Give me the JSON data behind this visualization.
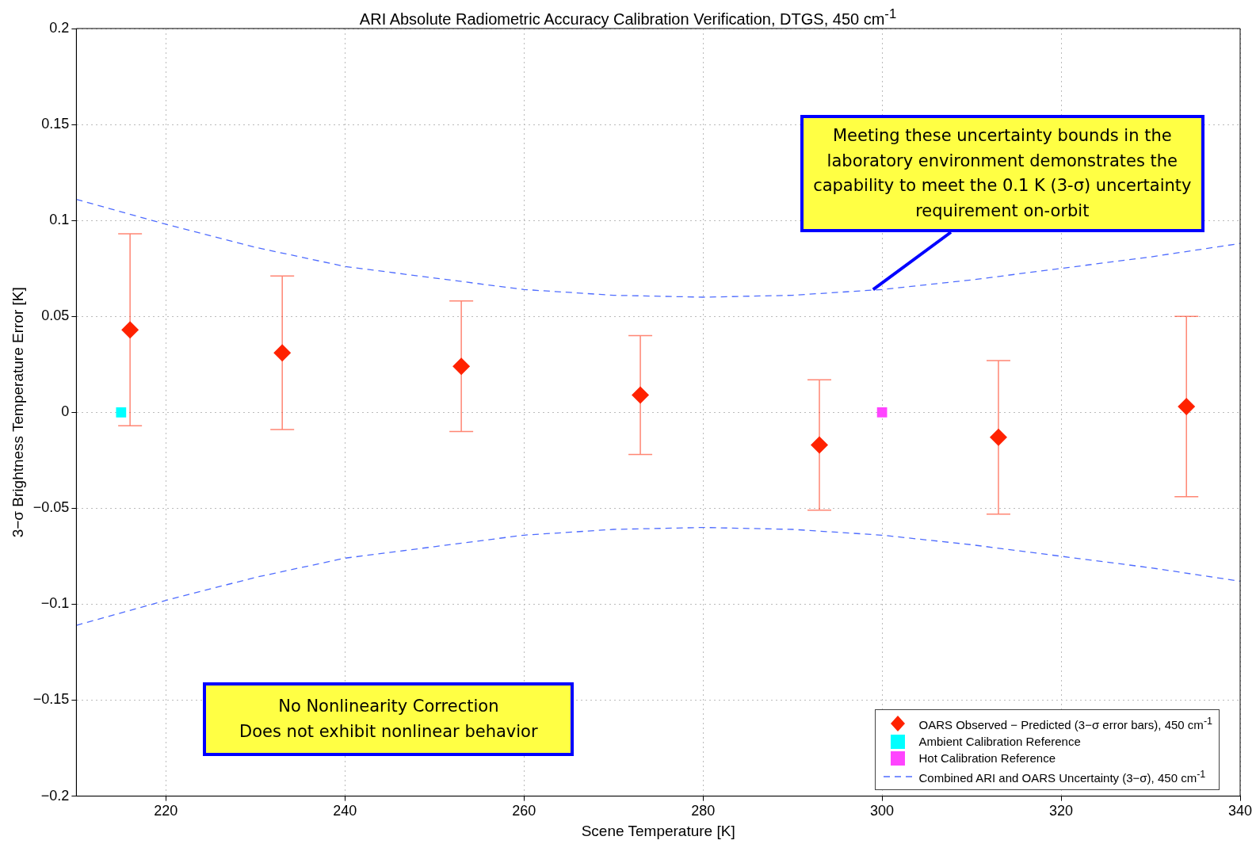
{
  "chart_data": {
    "type": "scatter",
    "title": "ARI Absolute Radiometric Accuracy Calibration Verification, DTGS, 450 cm$^{-1}$",
    "xlabel": "Scene Temperature [K]",
    "ylabel": "3−σ Brightness Temperature Error [K]",
    "xlim": [
      210,
      340
    ],
    "xticks": [
      220,
      240,
      260,
      280,
      300,
      320,
      340
    ],
    "ylim": [
      -0.2,
      0.2
    ],
    "yticks": [
      {
        "value": -0.2,
        "label": "−0.2"
      },
      {
        "value": -0.15,
        "label": "−0.15"
      },
      {
        "value": -0.1,
        "label": "−0.1"
      },
      {
        "value": -0.05,
        "label": "−0.05"
      },
      0,
      0.05,
      0.1,
      0.15,
      0.2
    ],
    "grid": true,
    "legend": "bottom right",
    "series": [
      {
        "name": "OARS Observed − Predicted (3−σ error bars), 450 cm$^{-1}$",
        "marker": "diamond",
        "color": "#ff2200",
        "x": [
          216,
          233,
          253,
          273,
          293,
          313,
          334
        ],
        "values": [
          0.043,
          0.031,
          0.024,
          0.009,
          -0.017,
          -0.013,
          0.003
        ],
        "errors": [
          0.05,
          0.04,
          0.034,
          0.031,
          0.034,
          0.04,
          0.047
        ]
      },
      {
        "name": "Ambient Calibration Reference",
        "marker": "square",
        "color": "#00ffff",
        "x": [
          215
        ],
        "values": [
          0
        ]
      },
      {
        "name": "Hot Calibration Reference",
        "marker": "square",
        "color": "#ff44ff",
        "x": [
          300
        ],
        "values": [
          0
        ]
      },
      {
        "name": "Combined ARI and OARS Uncertainty (3−σ), 450 cm$^{-1}$",
        "type": "line",
        "marker": "none",
        "line_style": "dashed",
        "color": "#4f6cff",
        "x": [
          210,
          220,
          230,
          240,
          250,
          260,
          270,
          280,
          290,
          300,
          310,
          320,
          330,
          340
        ],
        "values": [
          0.111,
          0.098,
          0.086,
          0.076,
          0.07,
          0.064,
          0.061,
          0.06,
          0.061,
          0.064,
          0.069,
          0.075,
          0.081,
          0.088
        ]
      },
      {
        "type": "line",
        "marker": "none",
        "line_style": "dashed",
        "color": "#4f6cff",
        "x": [
          210,
          220,
          230,
          240,
          250,
          260,
          270,
          280,
          290,
          300,
          310,
          320,
          330,
          340
        ],
        "values": [
          -0.111,
          -0.098,
          -0.086,
          -0.076,
          -0.07,
          -0.064,
          -0.061,
          -0.06,
          -0.061,
          -0.064,
          -0.069,
          -0.075,
          -0.081,
          -0.088
        ]
      }
    ],
    "annotations": [
      {
        "text": "Meeting these uncertainty bounds in the laboratory environment demonstrates the capability to meet the 0.1 K (3-σ) uncertainty requirement on-orbit",
        "x": 299,
        "y": 0.064
      },
      "No Nonlinearity Correction\nDoes not exhibit nonlinear behavior"
    ]
  }
}
